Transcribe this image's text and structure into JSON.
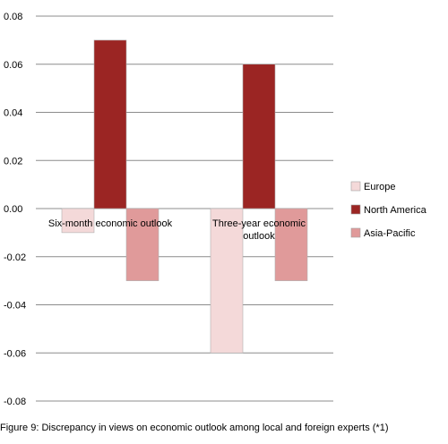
{
  "chart_data": {
    "type": "bar",
    "categories": [
      "Six-month economic outlook",
      "Three-year economic outlook"
    ],
    "series": [
      {
        "name": "Europe",
        "values": [
          -0.01,
          -0.06
        ],
        "color": "#f4d9d9"
      },
      {
        "name": "North America",
        "values": [
          0.07,
          0.06
        ],
        "color": "#9b2523"
      },
      {
        "name": "Asia-Pacific",
        "values": [
          -0.03,
          -0.03
        ],
        "color": "#e09a9a"
      }
    ],
    "ylim": [
      -0.08,
      0.08
    ],
    "yticks": [
      "0.08",
      "0.06",
      "0.04",
      "0.02",
      "0.00",
      "-0.02",
      "-0.04",
      "-0.06",
      "-0.08"
    ],
    "grid": true,
    "legend_position": "right"
  },
  "caption": "Figure 9: Discrepancy in views on economic outlook among local and foreign experts (*1)"
}
